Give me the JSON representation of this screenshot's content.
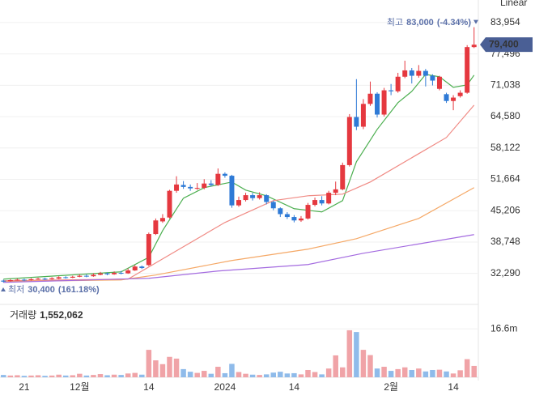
{
  "chart_data": [
    {
      "type": "candlestick",
      "scale_label": "Linear",
      "log_scale": false,
      "grid": true,
      "up_color": "#e5383f",
      "down_color": "#2e7ad6",
      "categories": [
        null,
        null,
        null,
        "21",
        null,
        null,
        null,
        null,
        null,
        null,
        null,
        "12월",
        null,
        null,
        null,
        null,
        null,
        null,
        null,
        null,
        null,
        "14",
        null,
        null,
        null,
        null,
        null,
        null,
        null,
        null,
        null,
        null,
        "2024",
        null,
        null,
        null,
        null,
        null,
        null,
        null,
        null,
        null,
        "14",
        null,
        null,
        null,
        null,
        null,
        null,
        null,
        null,
        null,
        null,
        null,
        null,
        null,
        "2월",
        null,
        null,
        null,
        null,
        null,
        null,
        null,
        null,
        "14",
        null,
        null,
        null
      ],
      "open": [
        30800,
        30700,
        30900,
        31000,
        30900,
        31100,
        31200,
        31100,
        31200,
        31500,
        31400,
        31600,
        31800,
        31700,
        32000,
        32300,
        32100,
        32400,
        32300,
        32900,
        33700,
        34000,
        40400,
        43000,
        43800,
        49300,
        50500,
        50100,
        49800,
        49900,
        50800,
        50500,
        52800,
        52400,
        46300,
        47400,
        48400,
        47800,
        48400,
        47000,
        45700,
        44500,
        43900,
        43200,
        43600,
        46400,
        47400,
        46700,
        48900,
        49600,
        54600,
        64500,
        62500,
        67200,
        69300,
        65000,
        70000,
        69800,
        72800,
        74100,
        73000,
        74000,
        73000,
        70300,
        69200,
        67800,
        68800,
        69500,
        78900
      ],
      "close": [
        30600,
        30900,
        31000,
        30900,
        31100,
        31200,
        31100,
        31300,
        31500,
        31400,
        31600,
        31800,
        31700,
        32000,
        32300,
        32100,
        32400,
        32300,
        32900,
        33700,
        33400,
        40400,
        43200,
        43700,
        49300,
        50600,
        50100,
        49800,
        49900,
        50800,
        50500,
        52800,
        52400,
        46300,
        47400,
        48400,
        47800,
        48400,
        47000,
        45700,
        44500,
        43900,
        43200,
        43600,
        46400,
        47400,
        46700,
        48900,
        49600,
        54600,
        64500,
        62500,
        67200,
        69300,
        65000,
        70000,
        69800,
        72800,
        74100,
        73000,
        74000,
        73000,
        72000,
        72800,
        67800,
        68500,
        69500,
        78900,
        79400
      ],
      "high": [
        31000,
        31100,
        31200,
        31200,
        31300,
        31400,
        31400,
        31500,
        31700,
        31700,
        31800,
        32100,
        32100,
        32300,
        32600,
        32500,
        32700,
        32800,
        33300,
        34000,
        33900,
        40700,
        43600,
        44500,
        49500,
        52300,
        51300,
        50600,
        50900,
        51700,
        51500,
        53900,
        53100,
        52600,
        48100,
        48900,
        48900,
        49000,
        48600,
        47300,
        45900,
        44900,
        44300,
        44100,
        46800,
        47900,
        48200,
        49300,
        51200,
        55100,
        65100,
        72300,
        68200,
        71800,
        69600,
        70500,
        71300,
        73600,
        76100,
        74600,
        75200,
        74400,
        73300,
        73000,
        69500,
        69000,
        70000,
        79300,
        83000
      ],
      "low": [
        30400,
        30600,
        30800,
        30700,
        30800,
        31000,
        30900,
        31000,
        31100,
        31200,
        31300,
        31500,
        31500,
        31600,
        31900,
        31900,
        32000,
        32100,
        32200,
        32800,
        33200,
        33800,
        40200,
        42700,
        43600,
        48900,
        49700,
        49300,
        49500,
        49600,
        50200,
        50300,
        52000,
        45800,
        46000,
        47100,
        47300,
        47500,
        46500,
        45300,
        43900,
        43500,
        42800,
        42900,
        43400,
        46100,
        46300,
        46500,
        48400,
        49400,
        54300,
        61800,
        62000,
        66800,
        64400,
        64600,
        69000,
        69500,
        72500,
        71400,
        72600,
        70800,
        71000,
        70000,
        67400,
        65900,
        68500,
        69300,
        78700
      ],
      "series": [
        {
          "color": "#4caf50",
          "x": [
            0,
            17,
            21,
            23,
            26,
            29,
            33,
            35,
            38,
            42,
            46,
            49,
            51,
            54,
            57,
            59,
            61,
            63,
            65,
            67,
            68
          ],
          "values": [
            31110,
            32610,
            35610,
            41110,
            47780,
            49950,
            51110,
            49450,
            48280,
            45620,
            44950,
            47280,
            55280,
            61950,
            67450,
            69780,
            73280,
            72790,
            70620,
            71120,
            73120
          ]
        },
        {
          "color": "#f08a84",
          "x": [
            0,
            18,
            23,
            32,
            39,
            44,
            49,
            53,
            60,
            64,
            68
          ],
          "values": [
            30780,
            31110,
            35280,
            42780,
            47280,
            48280,
            48610,
            51110,
            56950,
            60280,
            66950
          ]
        },
        {
          "color": "#f5a866",
          "x": [
            0,
            17,
            22,
            33,
            44,
            51,
            60,
            68
          ],
          "values": [
            30600,
            30950,
            31950,
            34950,
            37280,
            39440,
            43610,
            49950
          ]
        },
        {
          "color": "#a46be0",
          "x": [
            0,
            21,
            31,
            44,
            52,
            68
          ],
          "values": [
            30440,
            31280,
            32780,
            34110,
            36440,
            40280
          ]
        }
      ],
      "ylim": [
        26900,
        86100
      ],
      "yticks": [
        {
          "value": 83954,
          "label": "83,954"
        },
        {
          "value": 77496,
          "label": "77,496"
        },
        {
          "value": 71038,
          "label": "71,038"
        },
        {
          "value": 64580,
          "label": "64,580"
        },
        {
          "value": 58122,
          "label": "58,122"
        },
        {
          "value": 51664,
          "label": "51,664"
        },
        {
          "value": 45206,
          "label": "45,206"
        },
        {
          "value": 38748,
          "label": "38,748"
        },
        {
          "value": 32290,
          "label": "32,290"
        }
      ],
      "current_price": {
        "value": 79400,
        "label": "79,400",
        "color": "#4a5f95"
      },
      "high_note": {
        "prefix": "최고",
        "value": 83000,
        "label": "83,000",
        "change": "(-4.34%)"
      },
      "low_note": {
        "prefix": "최저",
        "value": 30400,
        "label": "30,400",
        "change": "(161.18%)"
      }
    },
    {
      "type": "bar",
      "title": "거래량",
      "current_text": "1,552,062",
      "up_color": "#f0a3a7",
      "down_color": "#8fbbea",
      "values": [
        0.8,
        0.6,
        0.7,
        0.5,
        0.6,
        0.7,
        0.5,
        0.6,
        0.9,
        0.6,
        0.7,
        1.2,
        0.6,
        0.8,
        1.1,
        0.7,
        0.9,
        0.8,
        1.3,
        1.5,
        0.9,
        9.4,
        5.8,
        4.5,
        7.0,
        6.4,
        2.8,
        1.9,
        1.5,
        2.2,
        1.2,
        3.6,
        1.4,
        4.6,
        1.8,
        1.2,
        0.9,
        0.8,
        1.0,
        1.6,
        1.9,
        1.3,
        1.4,
        1.0,
        2.5,
        1.8,
        1.0,
        3.0,
        7.5,
        3.4,
        16.1,
        15.5,
        9.4,
        7.6,
        3.0,
        3.6,
        2.2,
        2.8,
        3.4,
        2.5,
        3.0,
        2.0,
        2.5,
        2.6,
        2.0,
        1.3,
        2.4,
        6.2,
        3.9
      ],
      "ylim": [
        0,
        24.4
      ],
      "yticks": [
        {
          "value": 16.6,
          "label": "16.6m"
        }
      ]
    }
  ]
}
